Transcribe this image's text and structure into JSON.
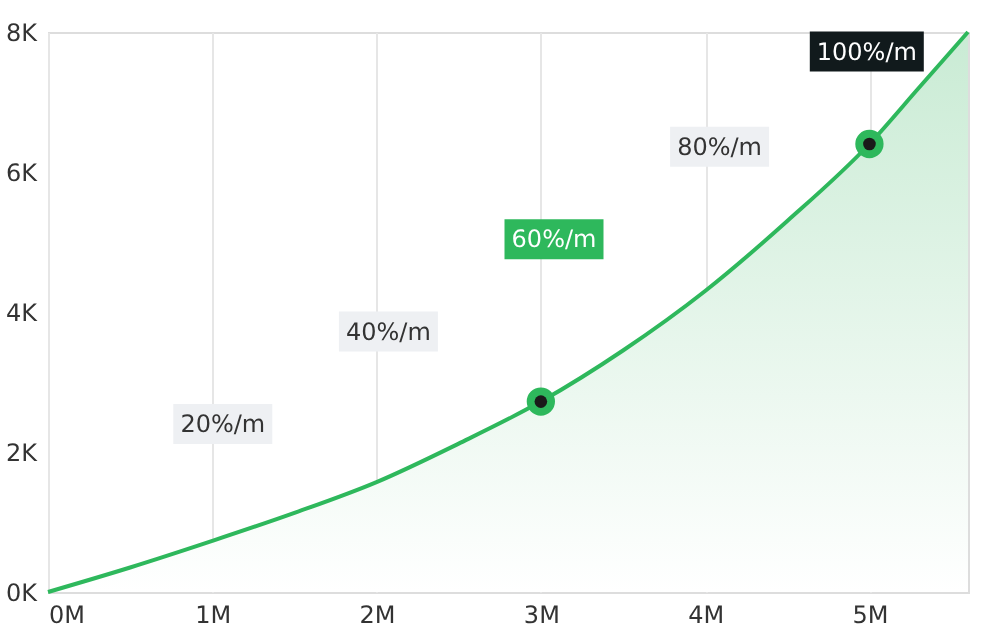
{
  "chart_data": {
    "type": "area",
    "x": [
      0,
      0.5,
      1,
      1.5,
      2,
      2.5,
      3,
      3.5,
      4,
      4.5,
      5,
      5.3,
      5.6
    ],
    "series": [
      {
        "color": "#2eb85c",
        "values": [
          0,
          0.35,
          0.73,
          1.13,
          1.57,
          2.12,
          2.72,
          3.45,
          4.3,
          5.3,
          6.4,
          7.2,
          8
        ]
      },
      {
        "type": "scatter",
        "color": "#2eb85c",
        "marker": "circle",
        "x": [
          3,
          5
        ],
        "values": [
          2.72,
          6.4
        ]
      }
    ],
    "xlim": [
      0,
      5.6
    ],
    "ylim": [
      0,
      8
    ],
    "xticks": [
      {
        "value": 0,
        "label": "0M"
      },
      {
        "value": 1,
        "label": "1M"
      },
      {
        "value": 2,
        "label": "2M"
      },
      {
        "value": 3,
        "label": "3M"
      },
      {
        "value": 4,
        "label": "4M"
      },
      {
        "value": 5,
        "label": "5M"
      }
    ],
    "yticks": [
      {
        "value": 0,
        "label": "0K"
      },
      {
        "value": 2,
        "label": "2K"
      },
      {
        "value": 4,
        "label": "4K"
      },
      {
        "value": 6,
        "label": "6K"
      },
      {
        "value": 8,
        "label": "8K"
      }
    ],
    "grid": "x",
    "annotations": [
      "20%/m",
      "40%/m",
      "60%/m",
      "80%/m",
      "100%/m"
    ]
  }
}
